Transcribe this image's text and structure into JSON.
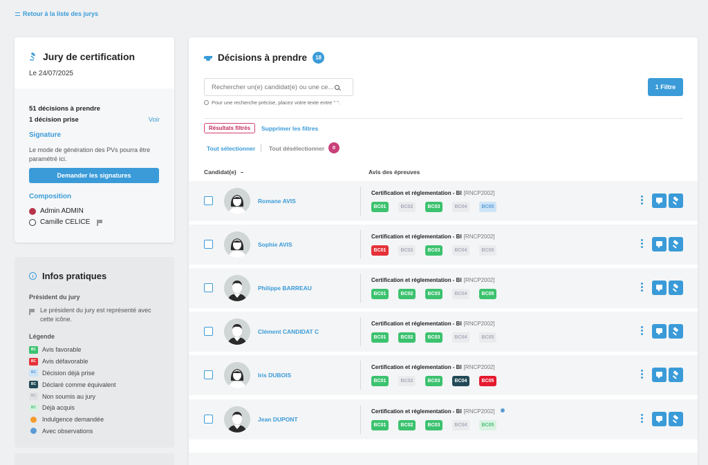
{
  "back_link": "Retour à la liste des jurys",
  "jury": {
    "title": "Jury de certification",
    "date": "Le 24/07/2025",
    "decisions_to_take": "51 décisions à prendre",
    "decisions_taken": "1 décision prise",
    "voir": "Voir",
    "signature_title": "Signature",
    "signature_text": "Le mode de génération des PVs pourra être paramétré ici.",
    "signature_button": "Demander les signatures",
    "composition_title": "Composition",
    "members": [
      {
        "name": "Admin ADMIN",
        "avatar_color": "#b8334a"
      },
      {
        "name": "Camille CELICE",
        "avatar_color": "#333333",
        "president": true
      }
    ]
  },
  "infos": {
    "title": "Infos pratiques",
    "president_title": "Président du jury",
    "president_text": "Le président du jury est représenté avec cette icône.",
    "legend_title": "Légende",
    "legend": [
      {
        "type": "badge",
        "label": "Avis favorable",
        "badge": "BC",
        "bg": "#3cc26f",
        "fg": "#ffffff"
      },
      {
        "type": "badge",
        "label": "Avis défavorable",
        "badge": "BC",
        "bg": "#e5323a",
        "fg": "#ffffff"
      },
      {
        "type": "badge",
        "label": "Décision déjà prise",
        "badge": "BC",
        "bg": "#cde4f7",
        "fg": "#5a9bd5"
      },
      {
        "type": "badge",
        "label": "Déclaré comme équivalent",
        "badge": "BC",
        "bg": "#214a56",
        "fg": "#ffffff"
      },
      {
        "type": "badge",
        "label": "Non soumis au jury",
        "badge": "BC",
        "bg": "#e0e2e4",
        "fg": "#aaaabb"
      },
      {
        "type": "badge",
        "label": "Déjà acquis",
        "badge": "BC",
        "bg": "#d9f2e2",
        "fg": "#4bbf7a"
      },
      {
        "type": "circle",
        "label": "Indulgence demandée",
        "bg": "#f39c2b"
      },
      {
        "type": "circle",
        "label": "Avec observations",
        "bg": "#5b9bd5"
      }
    ]
  },
  "main": {
    "title": "Décisions à prendre",
    "count": "18",
    "search_placeholder": "Rechercher un(e) candidat(e) ou une ce...",
    "hint": "Pour une recherche précise, placez votre texte entre \" \".",
    "filter_button": "1 Filtre",
    "filtered_chip": "Résultats filtrés",
    "clear_filters": "Supprimer les filtres",
    "select_all": "Tout sélectionner",
    "deselect_all": "Tout désélectionner",
    "selected_count": "0",
    "col_candidate": "Candidat(e)",
    "col_avis": "Avis des épreuves"
  },
  "candidates": [
    {
      "name": "Romane AVIS",
      "gender": "f",
      "cert": "Certification et réglementation - BI",
      "code": "[RNCP2002]",
      "observation": false,
      "bcs": [
        {
          "label": "BC01",
          "status": "fav"
        },
        {
          "label": "BC02",
          "status": "nonsoumis"
        },
        {
          "label": "BC03",
          "status": "fav"
        },
        {
          "label": "BC04",
          "status": "nonsoumis"
        },
        {
          "label": "BC05",
          "status": "deja"
        }
      ]
    },
    {
      "name": "Sophie AVIS",
      "gender": "f",
      "cert": "Certification et réglementation - BI",
      "code": "[RNCP2002]",
      "observation": false,
      "bcs": [
        {
          "label": "BC01",
          "status": "def"
        },
        {
          "label": "BC02",
          "status": "nonsoumis"
        },
        {
          "label": "BC03",
          "status": "fav"
        },
        {
          "label": "BC04",
          "status": "nonsoumis"
        },
        {
          "label": "BC05",
          "status": "nonsoumis"
        }
      ]
    },
    {
      "name": "Philippe BARREAU",
      "gender": "m",
      "cert": "Certification et réglementation - BI",
      "code": "[RNCP2002]",
      "observation": false,
      "bcs": [
        {
          "label": "BC01",
          "status": "fav"
        },
        {
          "label": "BC02",
          "status": "fav"
        },
        {
          "label": "BC03",
          "status": "fav"
        },
        {
          "label": "BC04",
          "status": "nonsoumis"
        },
        {
          "label": "BC05",
          "status": "fav"
        }
      ]
    },
    {
      "name": "Clément CANDIDAT C",
      "gender": "m",
      "cert": "Certification et réglementation - BI",
      "code": "[RNCP2002]",
      "observation": false,
      "bcs": [
        {
          "label": "BC01",
          "status": "fav"
        },
        {
          "label": "BC02",
          "status": "fav"
        },
        {
          "label": "BC03",
          "status": "fav"
        },
        {
          "label": "BC04",
          "status": "nonsoumis"
        },
        {
          "label": "BC05",
          "status": "nonsoumis"
        }
      ]
    },
    {
      "name": "Iris DUBOIS",
      "gender": "f",
      "cert": "Certification et réglementation - BI",
      "code": "[RNCP2002]",
      "observation": false,
      "bcs": [
        {
          "label": "BC01",
          "status": "fav"
        },
        {
          "label": "BC02",
          "status": "nonsoumis"
        },
        {
          "label": "BC03",
          "status": "fav"
        },
        {
          "label": "BC04",
          "status": "equiv"
        },
        {
          "label": "BC05",
          "status": "def2"
        }
      ]
    },
    {
      "name": "Jean DUPONT",
      "gender": "m",
      "cert": "Certification et réglementation - BI",
      "code": "[RNCP2002]",
      "observation": true,
      "bcs": [
        {
          "label": "BC01",
          "status": "fav"
        },
        {
          "label": "BC02",
          "status": "fav"
        },
        {
          "label": "BC03",
          "status": "fav"
        },
        {
          "label": "BC04",
          "status": "nonsoumis"
        },
        {
          "label": "BC05",
          "status": "acquis"
        }
      ]
    }
  ]
}
